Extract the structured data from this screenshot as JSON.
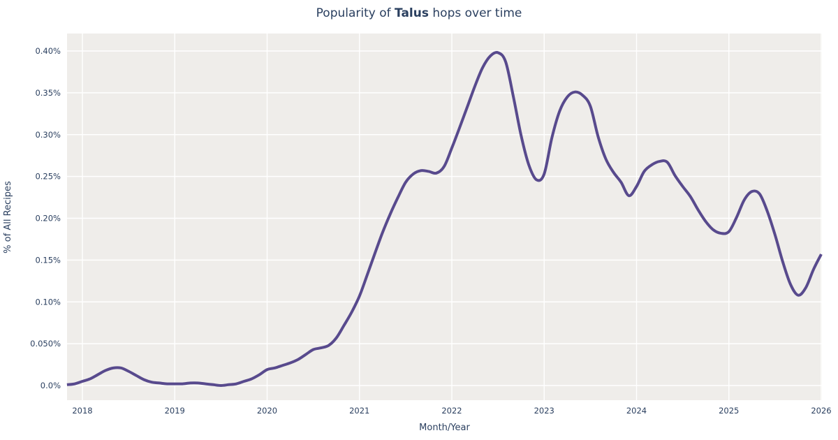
{
  "title": {
    "prefix": "Popularity of ",
    "hop": "Talus",
    "suffix": " hops over time"
  },
  "colors": {
    "text": "#2a3f5f",
    "tick_text": "#2a3f5f",
    "plot_background": "#efedea",
    "gridline": "#ffffff",
    "line": "#584a8d",
    "page_background": "#ffffff"
  },
  "chart_data": {
    "type": "line",
    "title": "Popularity of Talus hops over time",
    "series_name": "Talus",
    "xlabel": "Month/Year",
    "ylabel": "% of All Recipes",
    "x_unit": "decimal_year",
    "y_unit": "percent_of_all_recipes",
    "grid": true,
    "legend": false,
    "xlim": [
      2017.833,
      2026.0
    ],
    "ylim": [
      -0.018,
      0.421
    ],
    "x_ticks": [
      2018,
      2019,
      2020,
      2021,
      2022,
      2023,
      2024,
      2025,
      2026
    ],
    "y_ticks": {
      "labels": [
        "0.0%",
        "0.050%",
        "0.10%",
        "0.15%",
        "0.20%",
        "0.25%",
        "0.30%",
        "0.35%",
        "0.40%"
      ],
      "values": [
        0,
        0.05,
        0.1,
        0.15,
        0.2,
        0.25,
        0.3,
        0.35,
        0.4
      ]
    },
    "x": [
      2017.833,
      2017.917,
      2018.0,
      2018.083,
      2018.167,
      2018.25,
      2018.333,
      2018.417,
      2018.5,
      2018.583,
      2018.667,
      2018.75,
      2018.833,
      2018.917,
      2019.0,
      2019.083,
      2019.167,
      2019.25,
      2019.333,
      2019.417,
      2019.5,
      2019.583,
      2019.667,
      2019.75,
      2019.833,
      2019.917,
      2020.0,
      2020.083,
      2020.167,
      2020.25,
      2020.333,
      2020.417,
      2020.5,
      2020.583,
      2020.667,
      2020.75,
      2020.833,
      2020.917,
      2021.0,
      2021.083,
      2021.167,
      2021.25,
      2021.333,
      2021.417,
      2021.5,
      2021.583,
      2021.667,
      2021.75,
      2021.833,
      2021.917,
      2022.0,
      2022.083,
      2022.167,
      2022.25,
      2022.333,
      2022.417,
      2022.5,
      2022.583,
      2022.667,
      2022.75,
      2022.833,
      2022.917,
      2023.0,
      2023.083,
      2023.167,
      2023.25,
      2023.333,
      2023.417,
      2023.5,
      2023.583,
      2023.667,
      2023.75,
      2023.833,
      2023.917,
      2024.0,
      2024.083,
      2024.167,
      2024.25,
      2024.333,
      2024.417,
      2024.5,
      2024.583,
      2024.667,
      2024.75,
      2024.833,
      2024.917,
      2025.0,
      2025.083,
      2025.167,
      2025.25,
      2025.333,
      2025.417,
      2025.5,
      2025.583,
      2025.667,
      2025.75,
      2025.833,
      2025.917,
      2026.0
    ],
    "y": [
      0.001,
      0.002,
      0.005,
      0.008,
      0.013,
      0.018,
      0.021,
      0.021,
      0.017,
      0.012,
      0.007,
      0.004,
      0.003,
      0.002,
      0.002,
      0.002,
      0.003,
      0.003,
      0.002,
      0.001,
      0.0,
      0.001,
      0.002,
      0.005,
      0.008,
      0.013,
      0.019,
      0.021,
      0.024,
      0.027,
      0.031,
      0.037,
      0.043,
      0.045,
      0.048,
      0.057,
      0.072,
      0.088,
      0.107,
      0.132,
      0.158,
      0.183,
      0.205,
      0.225,
      0.243,
      0.253,
      0.257,
      0.256,
      0.254,
      0.262,
      0.284,
      0.308,
      0.333,
      0.358,
      0.38,
      0.394,
      0.398,
      0.387,
      0.345,
      0.299,
      0.264,
      0.246,
      0.253,
      0.296,
      0.328,
      0.345,
      0.351,
      0.347,
      0.334,
      0.298,
      0.271,
      0.255,
      0.243,
      0.227,
      0.238,
      0.256,
      0.264,
      0.268,
      0.267,
      0.251,
      0.238,
      0.226,
      0.21,
      0.196,
      0.186,
      0.182,
      0.184,
      0.201,
      0.222,
      0.232,
      0.229,
      0.208,
      0.18,
      0.148,
      0.121,
      0.108,
      0.117,
      0.139,
      0.157
    ]
  }
}
